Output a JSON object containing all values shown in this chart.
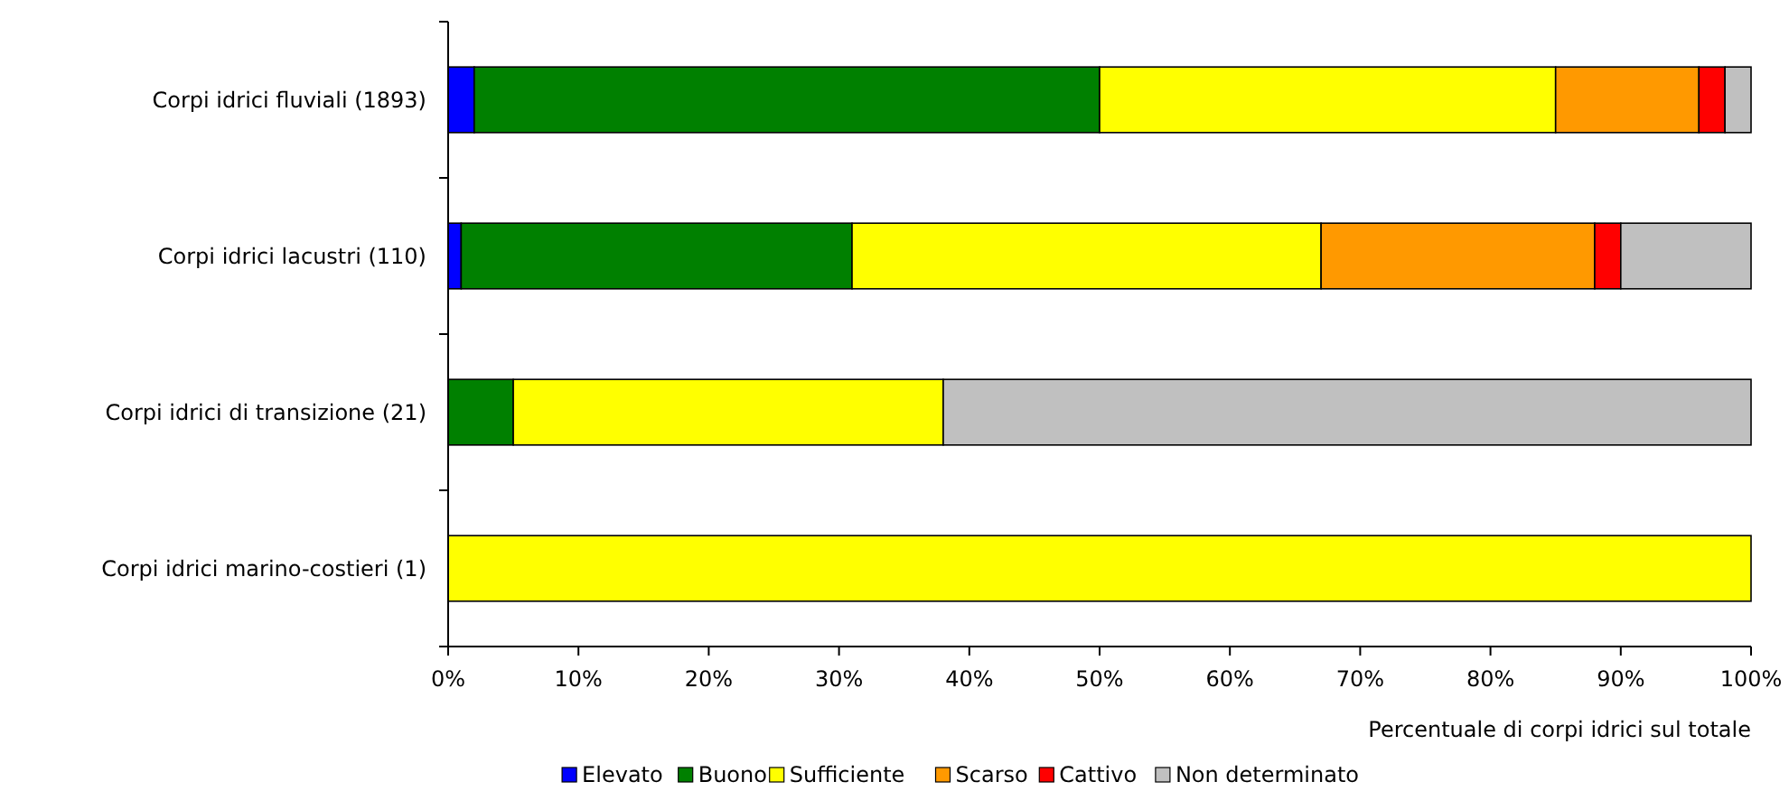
{
  "chart_data": {
    "type": "bar",
    "orientation": "horizontal",
    "stacked": true,
    "xlabel": "Percentuale di corpi idrici sul totale",
    "categories": [
      "Corpi idrici fluviali (1893)",
      "Corpi idrici lacustri (110)",
      "Corpi idrici di transizione (21)",
      "Corpi idrici marino-costieri (1)"
    ],
    "series": [
      {
        "name": "Elevato",
        "color": "#0000ff",
        "values": [
          2,
          1,
          0,
          0
        ]
      },
      {
        "name": "Buono",
        "color": "#008000",
        "values": [
          48,
          30,
          5,
          0
        ]
      },
      {
        "name": "Sufficiente",
        "color": "#ffff00",
        "values": [
          35,
          36,
          33,
          100
        ]
      },
      {
        "name": "Scarso",
        "color": "#ff9900",
        "values": [
          11,
          21,
          0,
          0
        ]
      },
      {
        "name": "Cattivo",
        "color": "#ff0000",
        "values": [
          2,
          2,
          0,
          0
        ]
      },
      {
        "name": "Non determinato",
        "color": "#c0c0c0",
        "values": [
          2,
          10,
          62,
          0
        ]
      }
    ],
    "xlim": [
      0,
      100
    ],
    "xticks": [
      {
        "value": 0,
        "label": "0%"
      },
      {
        "value": 10,
        "label": "10%"
      },
      {
        "value": 20,
        "label": "20%"
      },
      {
        "value": 30,
        "label": "30%"
      },
      {
        "value": 40,
        "label": "40%"
      },
      {
        "value": 50,
        "label": "50%"
      },
      {
        "value": 60,
        "label": "60%"
      },
      {
        "value": 70,
        "label": "70%"
      },
      {
        "value": 80,
        "label": "80%"
      },
      {
        "value": 90,
        "label": "90%"
      },
      {
        "value": 100,
        "label": "100%"
      }
    ],
    "legend": "bottom",
    "grid": false
  }
}
